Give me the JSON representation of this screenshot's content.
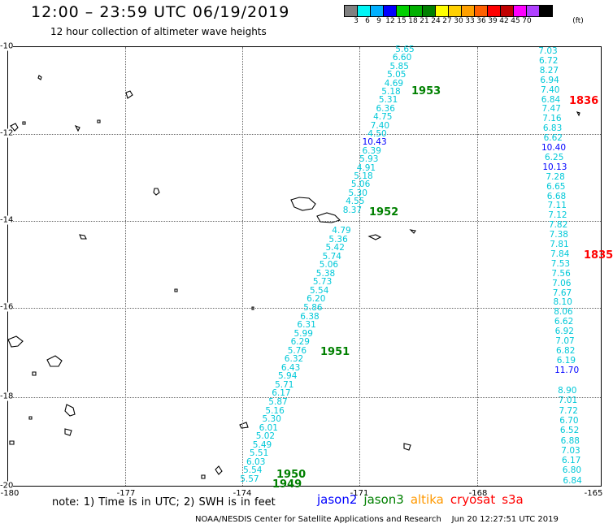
{
  "title": "12:00 – 23:59 UTC 06/19/2019",
  "subtitle": "12 hour collection of altimeter wave heights",
  "scale": {
    "labels": [
      "3",
      "6",
      "9",
      "12",
      "15",
      "18",
      "21",
      "24",
      "27",
      "30",
      "33",
      "36",
      "39",
      "42",
      "45",
      "70",
      "(ft)"
    ],
    "colors": [
      "#808080",
      "#00f5f5",
      "#00b0ff",
      "#0000ff",
      "#00d000",
      "#00b000",
      "#008000",
      "#ffff00",
      "#ffd000",
      "#ffa000",
      "#ff6000",
      "#ff0000",
      "#c00000",
      "#ff00ff",
      "#b040ff",
      "#000000"
    ]
  },
  "axes": {
    "lat_labels": [
      "-10",
      "-12",
      "-14",
      "-16",
      "-18",
      "-20"
    ],
    "lon_labels": [
      "-180",
      "-177",
      "-174",
      "-171",
      "-168",
      "-165"
    ]
  },
  "colors": {
    "cyan": "#00c8d8",
    "blue": "#0000ff",
    "green": "#008000",
    "red": "#ff0000",
    "orange": "#ff9900"
  },
  "tracks": {
    "main": [
      [
        "5.65",
        "cyan"
      ],
      [
        "6.60",
        "cyan"
      ],
      [
        "5.85",
        "cyan"
      ],
      [
        "5.05",
        "cyan"
      ],
      [
        "4.69",
        "cyan"
      ],
      [
        "5.18",
        "cyan"
      ],
      [
        "5.31",
        "cyan"
      ],
      [
        "6.36",
        "cyan"
      ],
      [
        "4.75",
        "cyan"
      ],
      [
        "7.40",
        "cyan"
      ],
      [
        "4.50",
        "cyan"
      ],
      [
        "10.43",
        "blue"
      ],
      [
        "6.39",
        "cyan"
      ],
      [
        "5.93",
        "cyan"
      ],
      [
        "4.91",
        "cyan"
      ],
      [
        "5.18",
        "cyan"
      ],
      [
        "5.06",
        "cyan"
      ],
      [
        "5.30",
        "cyan"
      ],
      [
        "4.55",
        "cyan"
      ],
      [
        "8.37",
        "cyan"
      ],
      [
        "4.79",
        "cyan"
      ],
      [
        "5.36",
        "cyan"
      ],
      [
        "5.42",
        "cyan"
      ],
      [
        "5.74",
        "cyan"
      ],
      [
        "5.06",
        "cyan"
      ],
      [
        "5.38",
        "cyan"
      ],
      [
        "5.73",
        "cyan"
      ],
      [
        "5.54",
        "cyan"
      ],
      [
        "6.20",
        "cyan"
      ],
      [
        "5.86",
        "cyan"
      ],
      [
        "6.38",
        "cyan"
      ],
      [
        "6.31",
        "cyan"
      ],
      [
        "5.99",
        "cyan"
      ],
      [
        "6.29",
        "cyan"
      ],
      [
        "5.76",
        "cyan"
      ],
      [
        "6.32",
        "cyan"
      ],
      [
        "6.43",
        "cyan"
      ],
      [
        "5.94",
        "cyan"
      ],
      [
        "5.71",
        "cyan"
      ],
      [
        "6.17",
        "cyan"
      ],
      [
        "5.87",
        "cyan"
      ],
      [
        "5.16",
        "cyan"
      ],
      [
        "5.30",
        "cyan"
      ],
      [
        "6.01",
        "cyan"
      ],
      [
        "5.02",
        "cyan"
      ],
      [
        "5.49",
        "cyan"
      ],
      [
        "5.51",
        "cyan"
      ],
      [
        "6.03",
        "cyan"
      ],
      [
        "5.54",
        "cyan"
      ],
      [
        "5.57",
        "cyan"
      ]
    ],
    "right": [
      [
        "7.03",
        "cyan"
      ],
      [
        "6.72",
        "cyan"
      ],
      [
        "8.27",
        "cyan"
      ],
      [
        "6.94",
        "cyan"
      ],
      [
        "7.40",
        "cyan"
      ],
      [
        "6.84",
        "cyan"
      ],
      [
        "7.47",
        "cyan"
      ],
      [
        "7.16",
        "cyan"
      ],
      [
        "6.83",
        "cyan"
      ],
      [
        "6.62",
        "cyan"
      ],
      [
        "10.40",
        "blue"
      ],
      [
        "6.25",
        "cyan"
      ],
      [
        "10.13",
        "blue"
      ],
      [
        "7.28",
        "cyan"
      ],
      [
        "6.65",
        "cyan"
      ],
      [
        "6.68",
        "cyan"
      ],
      [
        "7.11",
        "cyan"
      ],
      [
        "7.12",
        "cyan"
      ],
      [
        "7.82",
        "cyan"
      ],
      [
        "7.38",
        "cyan"
      ],
      [
        "7.81",
        "cyan"
      ],
      [
        "7.84",
        "cyan"
      ],
      [
        "7.53",
        "cyan"
      ],
      [
        "7.56",
        "cyan"
      ],
      [
        "7.06",
        "cyan"
      ],
      [
        "7.67",
        "cyan"
      ],
      [
        "8.10",
        "cyan"
      ],
      [
        "8.06",
        "cyan"
      ],
      [
        "6.62",
        "cyan"
      ],
      [
        "6.92",
        "cyan"
      ],
      [
        "7.07",
        "cyan"
      ],
      [
        "6.82",
        "cyan"
      ],
      [
        "6.19",
        "cyan"
      ],
      [
        "11.70",
        "blue"
      ],
      [
        "8.90",
        "cyan"
      ],
      [
        "7.01",
        "cyan"
      ],
      [
        "7.72",
        "cyan"
      ],
      [
        "6.70",
        "cyan"
      ],
      [
        "6.52",
        "cyan"
      ],
      [
        "6.88",
        "cyan"
      ],
      [
        "7.03",
        "cyan"
      ],
      [
        "6.17",
        "cyan"
      ],
      [
        "6.80",
        "cyan"
      ],
      [
        "6.84",
        "cyan"
      ]
    ]
  },
  "pass_labels": [
    {
      "text": "1953",
      "color": "green"
    },
    {
      "text": "1952",
      "color": "green"
    },
    {
      "text": "1951",
      "color": "green"
    },
    {
      "text": "1950",
      "color": "green"
    },
    {
      "text": "1949",
      "color": "green"
    },
    {
      "text": "1836",
      "color": "red"
    },
    {
      "text": "1835",
      "color": "red"
    }
  ],
  "note": "note: 1) Time is in UTC; 2) SWH is in feet",
  "legend": [
    {
      "text": "jason2",
      "color": "blue"
    },
    {
      "text": "jason3",
      "color": "green"
    },
    {
      "text": "altika",
      "color": "orange"
    },
    {
      "text": "cryosat",
      "color": "red"
    },
    {
      "text": "s3a",
      "color": "red"
    }
  ],
  "footer": "NOAA/NESDIS Center for Satellite Applications and Research    Jun 20 12:27:51 UTC 2019"
}
